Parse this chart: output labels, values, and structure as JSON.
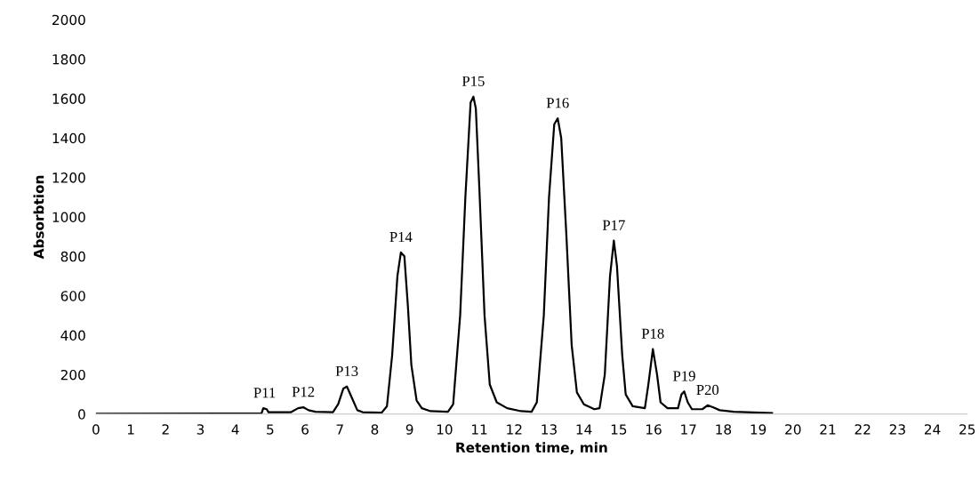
{
  "chart_data": {
    "type": "line",
    "xlabel": "Retention time, min",
    "ylabel": "Absorbtion",
    "xlim": [
      0,
      25
    ],
    "xticks": [
      0,
      1,
      2,
      3,
      4,
      5,
      6,
      7,
      8,
      9,
      10,
      11,
      12,
      13,
      14,
      15,
      16,
      17,
      18,
      19,
      20,
      21,
      22,
      23,
      24,
      25
    ],
    "ylim": [
      0,
      2000
    ],
    "yticks": [
      0,
      200,
      400,
      600,
      800,
      1000,
      1200,
      1400,
      1600,
      1800,
      2000
    ],
    "grid": false,
    "legend": false,
    "marker": "none",
    "line_style": "solid",
    "series": [
      {
        "color": "#000000",
        "x": [
          0,
          4.75,
          4.8,
          4.9,
          4.95,
          5.6,
          5.8,
          5.95,
          6.1,
          6.3,
          6.8,
          6.95,
          7.1,
          7.2,
          7.35,
          7.5,
          7.65,
          8.2,
          8.35,
          8.5,
          8.65,
          8.75,
          8.85,
          8.95,
          9.05,
          9.2,
          9.35,
          9.6,
          10.1,
          10.25,
          10.45,
          10.6,
          10.75,
          10.83,
          10.9,
          11.0,
          11.15,
          11.3,
          11.5,
          11.8,
          12.2,
          12.5,
          12.65,
          12.85,
          13.0,
          13.15,
          13.25,
          13.35,
          13.5,
          13.65,
          13.8,
          14.0,
          14.3,
          14.45,
          14.6,
          14.75,
          14.86,
          14.95,
          15.1,
          15.2,
          15.4,
          15.75,
          15.85,
          15.98,
          16.1,
          16.2,
          16.4,
          16.7,
          16.8,
          16.88,
          16.98,
          17.1,
          17.4,
          17.55,
          17.7,
          17.9,
          18.3,
          19.4
        ],
        "values": [
          2,
          3,
          30,
          25,
          10,
          10,
          30,
          35,
          20,
          12,
          10,
          50,
          130,
          140,
          80,
          20,
          10,
          8,
          40,
          300,
          700,
          820,
          800,
          550,
          250,
          70,
          30,
          15,
          12,
          50,
          500,
          1100,
          1580,
          1610,
          1550,
          1150,
          500,
          150,
          60,
          30,
          15,
          12,
          60,
          500,
          1100,
          1470,
          1500,
          1400,
          900,
          350,
          110,
          50,
          25,
          30,
          200,
          700,
          880,
          750,
          300,
          100,
          40,
          30,
          150,
          330,
          200,
          60,
          30,
          30,
          100,
          115,
          60,
          25,
          25,
          45,
          35,
          20,
          12,
          5
        ]
      }
    ],
    "annotations": [
      {
        "text": "P11",
        "x": 4.84,
        "y": 30
      },
      {
        "text": "P12",
        "x": 5.95,
        "y": 35
      },
      {
        "text": "P13",
        "x": 7.2,
        "y": 140
      },
      {
        "text": "P14",
        "x": 8.75,
        "y": 820
      },
      {
        "text": "P15",
        "x": 10.83,
        "y": 1610
      },
      {
        "text": "P16",
        "x": 13.25,
        "y": 1500
      },
      {
        "text": "P17",
        "x": 14.86,
        "y": 880
      },
      {
        "text": "P18",
        "x": 15.98,
        "y": 330
      },
      {
        "text": "P19",
        "x": 16.88,
        "y": 115
      },
      {
        "text": "P20",
        "x": 17.55,
        "y": 45
      }
    ]
  }
}
